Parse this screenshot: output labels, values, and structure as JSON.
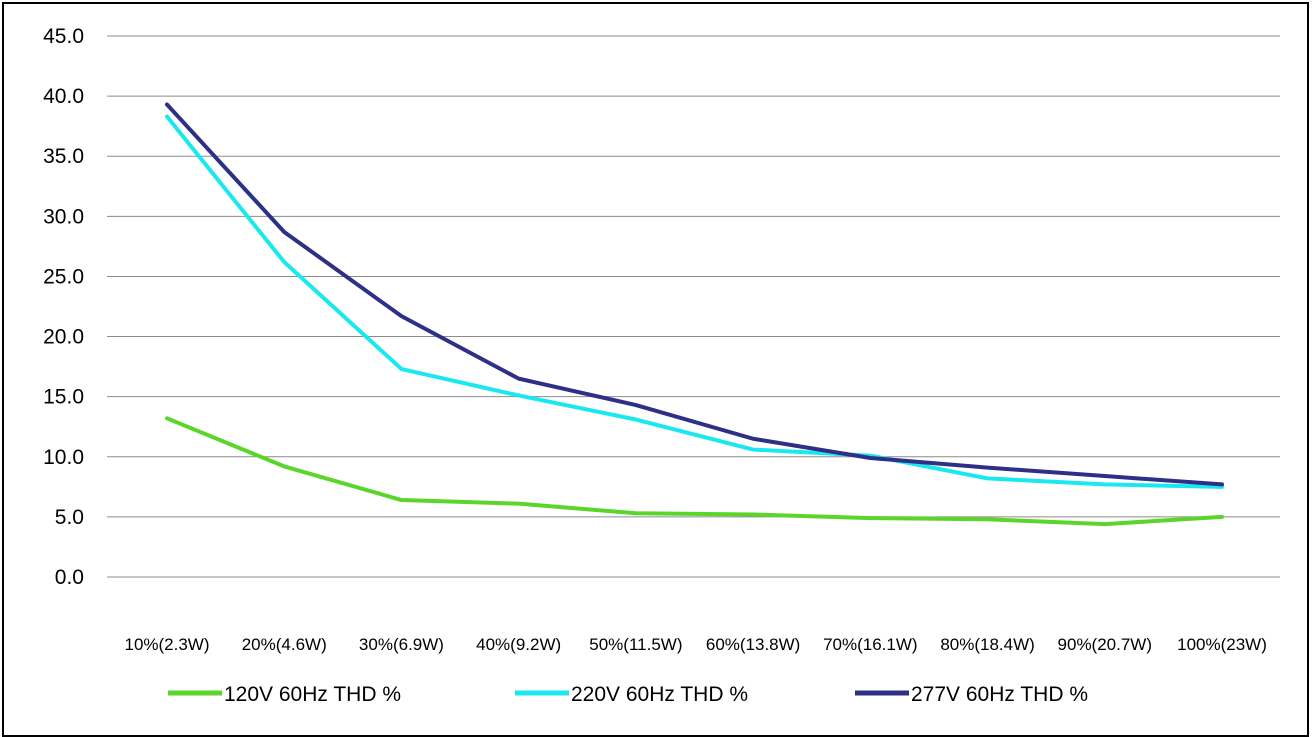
{
  "chart_data": {
    "type": "line",
    "title": "",
    "xlabel": "",
    "ylabel": "",
    "ylim": [
      0,
      45
    ],
    "y_ticks": [
      "0.0",
      "5.0",
      "10.0",
      "15.0",
      "20.0",
      "25.0",
      "30.0",
      "35.0",
      "40.0",
      "45.0"
    ],
    "grid": true,
    "legend_position": "bottom",
    "categories": [
      "10%(2.3W)",
      "20%(4.6W)",
      "30%(6.9W)",
      "40%(9.2W)",
      "50%(11.5W)",
      "60%(13.8W)",
      "70%(16.1W)",
      "80%(18.4W)",
      "90%(20.7W)",
      "100%(23W)"
    ],
    "series": [
      {
        "name": "120V 60Hz  THD %",
        "color": "#5ad62a",
        "values": [
          13.2,
          9.2,
          6.4,
          6.1,
          5.3,
          5.2,
          4.9,
          4.8,
          4.4,
          5.0
        ]
      },
      {
        "name": "220V 60Hz THD %",
        "color": "#1ae8f0",
        "values": [
          38.3,
          26.2,
          17.3,
          15.1,
          13.1,
          10.6,
          10.1,
          8.2,
          7.7,
          7.5
        ]
      },
      {
        "name": "277V 60Hz  THD %",
        "color": "#2e2f86",
        "values": [
          39.3,
          28.7,
          21.7,
          16.5,
          14.3,
          11.5,
          9.9,
          9.1,
          8.4,
          7.7
        ]
      }
    ]
  }
}
